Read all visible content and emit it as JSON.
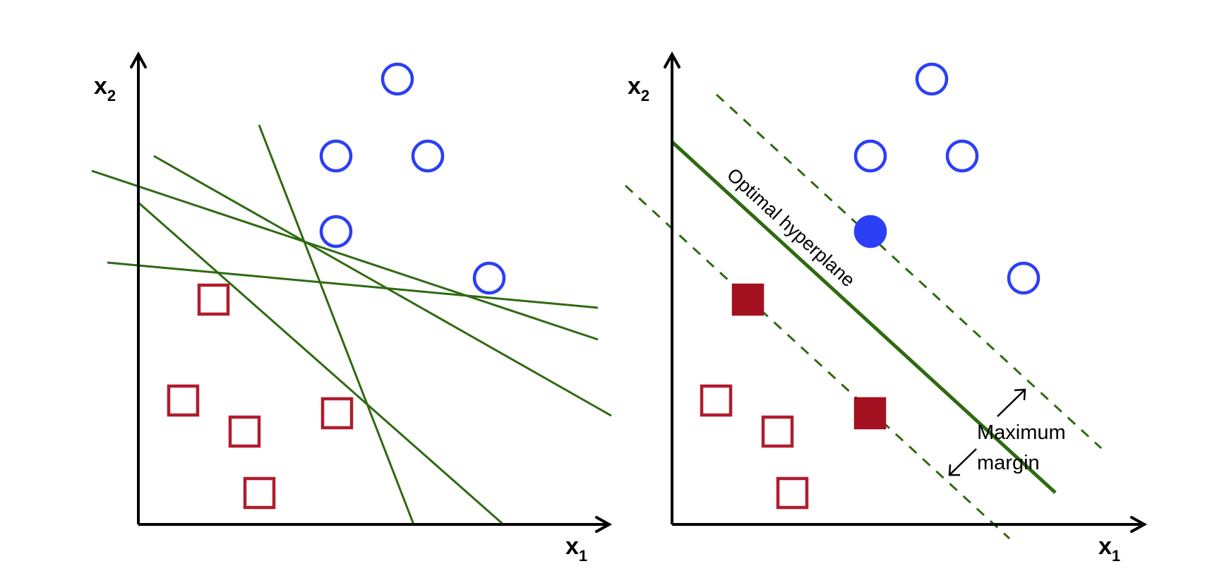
{
  "colors": {
    "positive_class": "#2b3ff5",
    "negative_class": "#b01c2c",
    "hyperplane": "#2e6a10",
    "axes": "#000000"
  },
  "left_panel": {
    "axis_x": {
      "label": "x",
      "subscript": "1"
    },
    "axis_y": {
      "label": "x",
      "subscript": "2"
    }
  },
  "right_panel": {
    "axis_x": {
      "label": "x",
      "subscript": "1"
    },
    "axis_y": {
      "label": "x",
      "subscript": "2"
    },
    "hyperplane_label": "Optimal hyperplane",
    "margin_label_line1": "Maximum",
    "margin_label_line2": "margin"
  }
}
